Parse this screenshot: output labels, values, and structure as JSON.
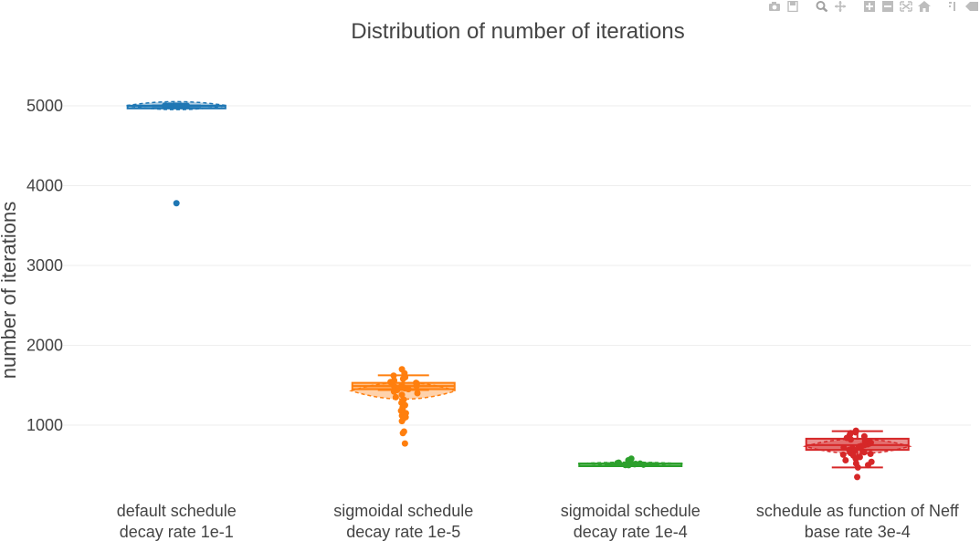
{
  "modebar": {
    "icons": [
      "camera-icon",
      "save-icon",
      "zoom-icon",
      "pan-icon",
      "zoom-in-icon",
      "zoom-out-icon",
      "autoscale-icon",
      "home-icon",
      "spike-lines-icon",
      "hover-compare-icon"
    ]
  },
  "chart_data": {
    "type": "violin",
    "title": "Distribution of number of iterations",
    "xlabel": "",
    "ylabel": "number of iterations",
    "ylim": [
      200,
      5400
    ],
    "yticks": [
      1000,
      2000,
      3000,
      4000,
      5000
    ],
    "ytick_labels": [
      "1000",
      "2000",
      "3000",
      "4000",
      "5000"
    ],
    "grid": true,
    "legend": "none",
    "categories": [
      [
        "default schedule",
        "decay rate 1e-1"
      ],
      [
        "sigmoidal schedule",
        "decay rate 1e-5"
      ],
      [
        "sigmoidal schedule",
        "decay rate 1e-4"
      ],
      [
        "schedule as function of Neff",
        "base rate 3e-4"
      ]
    ],
    "series": [
      {
        "color": "#1f77b4",
        "box": {
          "min": 4995,
          "q1": 4998,
          "median": 5000,
          "q3": 5002,
          "max": 5005
        },
        "violin": {
          "low": 4940,
          "high": 5065,
          "halfwidth": 0.22
        },
        "points": [
          3780,
          4998,
          5000,
          5002,
          5000,
          4999,
          5001,
          5000,
          4997,
          5003,
          5000,
          4998,
          5002,
          5001,
          4999
        ]
      },
      {
        "color": "#ff7f0e",
        "box": {
          "min": 1440,
          "q1": 1450,
          "median": 1490,
          "q3": 1530,
          "max": 1625
        },
        "violin": {
          "low": 1300,
          "high": 1560,
          "halfwidth": 0.23
        },
        "points": [
          1700,
          1650,
          1620,
          1600,
          1580,
          1560,
          1540,
          1530,
          1520,
          1510,
          1500,
          1490,
          1480,
          1470,
          1460,
          1450,
          1440,
          1420,
          1400,
          1380,
          1350,
          1320,
          1300,
          1280,
          1250,
          1220,
          1200,
          1180,
          1150,
          1120,
          1100,
          1080,
          1050,
          920,
          900,
          770
        ]
      },
      {
        "color": "#2ca02c",
        "box": {
          "min": 505,
          "q1": 510,
          "median": 515,
          "q3": 520,
          "max": 525
        },
        "violin": {
          "low": 495,
          "high": 540,
          "halfwidth": 0.23
        },
        "points": [
          580,
          560,
          550,
          540,
          530,
          525,
          520,
          515,
          510,
          505,
          500,
          498,
          520,
          512,
          518
        ]
      },
      {
        "color": "#d62728",
        "box": {
          "min": 470,
          "q1": 690,
          "median": 750,
          "q3": 830,
          "max": 925
        },
        "violin": {
          "low": 620,
          "high": 850,
          "halfwidth": 0.23
        },
        "points": [
          930,
          910,
          900,
          880,
          860,
          840,
          820,
          800,
          790,
          780,
          770,
          760,
          750,
          740,
          730,
          720,
          710,
          700,
          690,
          680,
          670,
          660,
          650,
          640,
          630,
          620,
          600,
          580,
          560,
          540,
          520,
          500,
          470,
          350
        ]
      }
    ]
  }
}
